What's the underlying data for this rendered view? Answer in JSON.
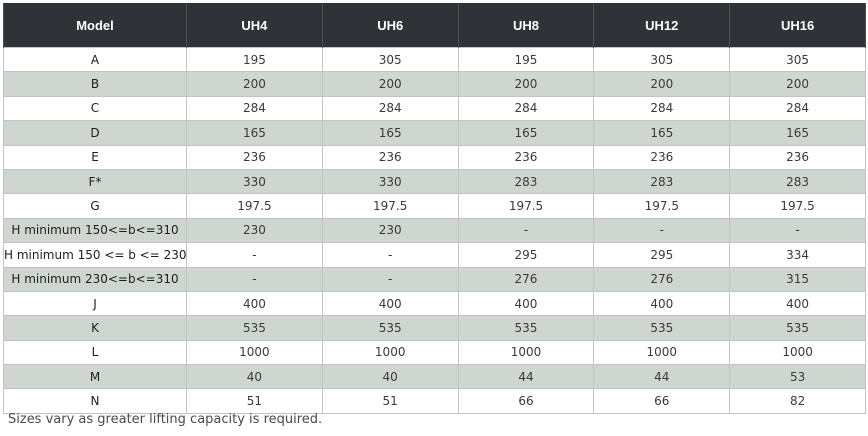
{
  "table": {
    "headers": [
      "Model",
      "UH4",
      "UH6",
      "UH8",
      "UH12",
      "UH16"
    ],
    "rows": [
      [
        "A",
        "195",
        "305",
        "195",
        "305",
        "305"
      ],
      [
        "B",
        "200",
        "200",
        "200",
        "200",
        "200"
      ],
      [
        "C",
        "284",
        "284",
        "284",
        "284",
        "284"
      ],
      [
        "D",
        "165",
        "165",
        "165",
        "165",
        "165"
      ],
      [
        "E",
        "236",
        "236",
        "236",
        "236",
        "236"
      ],
      [
        "F*",
        "330",
        "330",
        "283",
        "283",
        "283"
      ],
      [
        "G",
        "197.5",
        "197.5",
        "197.5",
        "197.5",
        "197.5"
      ],
      [
        "H minimum 150<=b<=310",
        "230",
        "230",
        "-",
        "-",
        "-"
      ],
      [
        "H minimum 150 <= b <= 230",
        "-",
        "-",
        "295",
        "295",
        "334"
      ],
      [
        "H minimum 230<=b<=310",
        "-",
        "-",
        "276",
        "276",
        "315"
      ],
      [
        "J",
        "400",
        "400",
        "400",
        "400",
        "400"
      ],
      [
        "K",
        "535",
        "535",
        "535",
        "535",
        "535"
      ],
      [
        "L",
        "1000",
        "1000",
        "1000",
        "1000",
        "1000"
      ],
      [
        "M",
        "40",
        "40",
        "44",
        "44",
        "53"
      ],
      [
        "N",
        "51",
        "51",
        "66",
        "66",
        "82"
      ]
    ]
  },
  "footnote": "Sizes vary as greater lifting capacity is required."
}
